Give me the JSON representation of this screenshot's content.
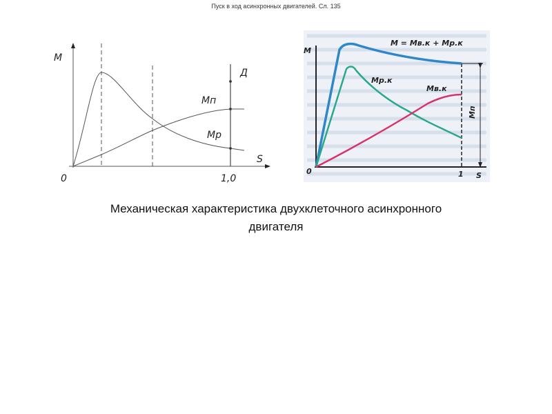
{
  "header": {
    "title": "Пуск в ход асинхронных двигателей. Сл. 135"
  },
  "left_diagram": {
    "y_label": "M",
    "x_label": "S",
    "origin": "0",
    "x_tick": "1,0",
    "motor_label": "Д",
    "curve_start_label": "Mп",
    "curve_work_label": "Mр"
  },
  "right_diagram": {
    "y_label": "M",
    "x_label": "S",
    "origin": "0",
    "x_tick": "1",
    "sum_label": "M = Mв.к + Mр.к",
    "work_label": "Mр.к",
    "start_cage_label": "Mв.к",
    "start_torque_label": "Mп",
    "colors": {
      "sum": "#2f86c8",
      "work": "#2aa88a",
      "start_cage": "#d6336a",
      "background": "#e9eef5"
    }
  },
  "caption": {
    "line1": "Механическая характеристика двухклеточного асинхронного",
    "line2": "двигателя"
  }
}
